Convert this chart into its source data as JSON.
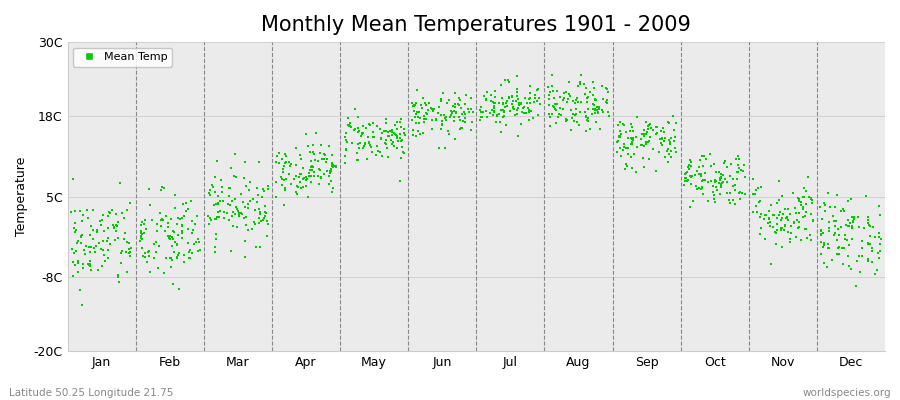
{
  "title": "Monthly Mean Temperatures 1901 - 2009",
  "ylabel": "Temperature",
  "xlabel_labels": [
    "Jan",
    "Feb",
    "Mar",
    "Apr",
    "May",
    "Jun",
    "Jul",
    "Aug",
    "Sep",
    "Oct",
    "Nov",
    "Dec"
  ],
  "ytick_labels": [
    "30C",
    "18C",
    "5C",
    "-8C",
    "-20C"
  ],
  "ytick_values": [
    30,
    18,
    5,
    -8,
    -20
  ],
  "ylim": [
    -20,
    30
  ],
  "legend_label": "Mean Temp",
  "dot_color": "#00cc00",
  "background_color": "#ebebeb",
  "footer_left": "Latitude 50.25 Longitude 21.75",
  "footer_right": "worldspecies.org",
  "title_fontsize": 15,
  "n_years": 109,
  "monthly_means": [
    -2.5,
    -1.8,
    3.5,
    9.5,
    14.5,
    18.0,
    20.0,
    19.5,
    14.0,
    8.0,
    2.0,
    -1.2
  ],
  "monthly_stds": [
    3.8,
    3.8,
    3.0,
    2.2,
    2.0,
    1.8,
    1.8,
    2.0,
    2.2,
    2.2,
    2.8,
    3.2
  ]
}
